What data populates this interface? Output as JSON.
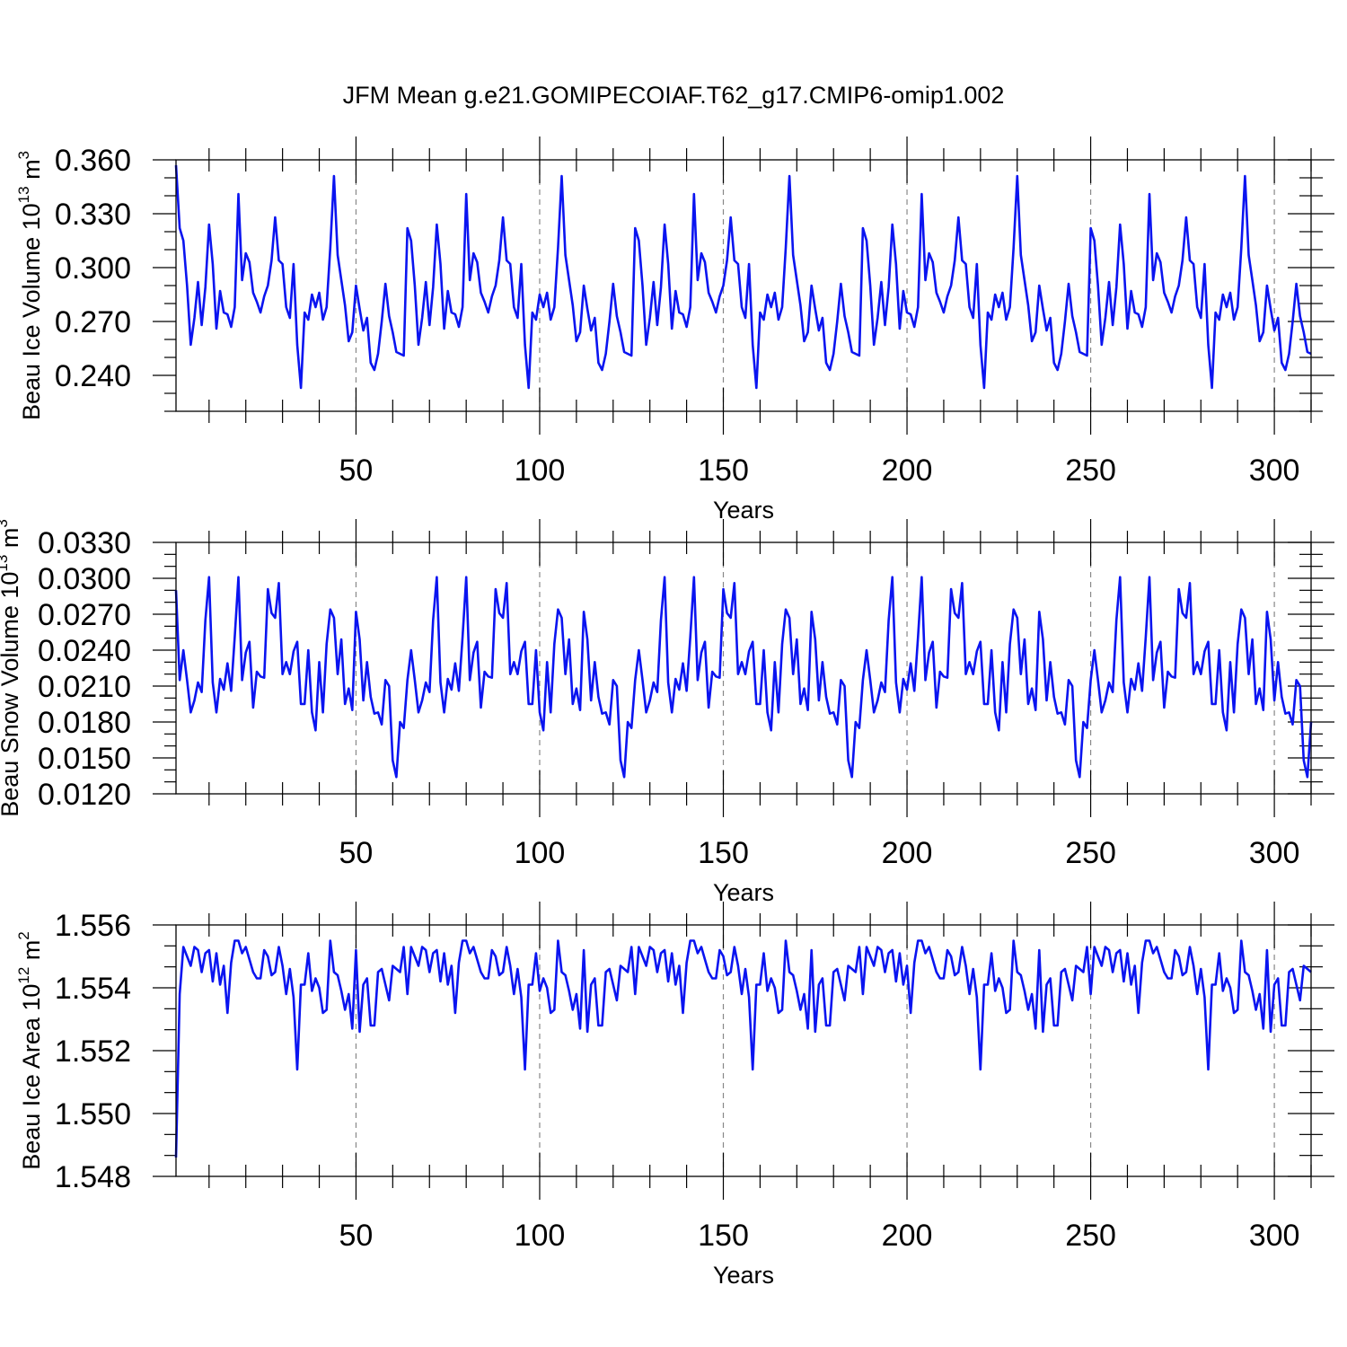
{
  "title": "JFM Mean g.e21.GOMIPECOIAF.T62_g17.CMIP6-omip1.002",
  "colors": {
    "series": "#0a14f0",
    "grid": "#888888",
    "axis": "#000000"
  },
  "chart_data": [
    {
      "type": "line",
      "name": "ice-volume",
      "ylabel": {
        "main": "Beau Ice Volume 10",
        "sup1": "13",
        "unit": " m",
        "sup2": "3"
      },
      "xlabel": "Years",
      "xlim": [
        1,
        310
      ],
      "ylim": [
        0.22,
        0.36
      ],
      "xticks": [
        "50",
        "100",
        "150",
        "200",
        "250",
        "300"
      ],
      "yticks": [
        "0.360",
        "0.330",
        "0.300",
        "0.270",
        "0.240"
      ],
      "grid": "vertical dashed at major x ticks",
      "period": 62,
      "values": [
        0.357,
        0.322,
        0.315,
        0.29,
        0.257,
        0.272,
        0.292,
        0.268,
        0.289,
        0.324,
        0.302,
        0.266,
        0.287,
        0.275,
        0.274,
        0.267,
        0.278,
        0.341,
        0.293,
        0.308,
        0.303,
        0.286,
        0.281,
        0.275,
        0.284,
        0.29,
        0.304,
        0.328,
        0.304,
        0.302,
        0.278,
        0.272,
        0.302,
        0.257,
        0.233,
        0.275,
        0.271,
        0.285,
        0.278,
        0.286,
        0.271,
        0.278,
        0.311,
        0.351,
        0.307,
        0.293,
        0.279,
        0.259,
        0.264,
        0.29,
        0.277,
        0.265,
        0.272,
        0.247,
        0.243,
        0.252,
        0.27,
        0.291,
        0.273,
        0.264,
        0.253,
        0.252,
        0.251
      ]
    },
    {
      "type": "line",
      "name": "snow-volume",
      "ylabel": {
        "main": "Beau Snow Volume 10",
        "sup1": "13",
        "unit": " m",
        "sup2": "3"
      },
      "xlabel": "Years",
      "xlim": [
        1,
        310
      ],
      "ylim": [
        0.012,
        0.033
      ],
      "xticks": [
        "50",
        "100",
        "150",
        "200",
        "250",
        "300"
      ],
      "yticks": [
        "0.0330",
        "0.0300",
        "0.0270",
        "0.0240",
        "0.0210",
        "0.0180",
        "0.0150",
        "0.0120"
      ],
      "grid": "vertical dashed at major x ticks",
      "period": 62,
      "values": [
        0.029,
        0.0215,
        0.024,
        0.0215,
        0.0188,
        0.0198,
        0.0213,
        0.0205,
        0.0265,
        0.0301,
        0.0213,
        0.0188,
        0.0216,
        0.0207,
        0.0229,
        0.0206,
        0.0251,
        0.0301,
        0.0215,
        0.0238,
        0.0247,
        0.0192,
        0.0222,
        0.0218,
        0.0217,
        0.0291,
        0.0271,
        0.0267,
        0.0296,
        0.022,
        0.023,
        0.022,
        0.0239,
        0.0247,
        0.0195,
        0.0195,
        0.024,
        0.0188,
        0.0173,
        0.023,
        0.0188,
        0.0245,
        0.0274,
        0.0267,
        0.022,
        0.0249,
        0.0195,
        0.0208,
        0.019,
        0.0272,
        0.0249,
        0.0198,
        0.023,
        0.0201,
        0.0187,
        0.0188,
        0.0178,
        0.0215,
        0.021,
        0.0148,
        0.0134,
        0.018,
        0.0175
      ]
    },
    {
      "type": "line",
      "name": "ice-area",
      "ylabel": {
        "main": "Beau Ice Area 10",
        "sup1": "12",
        "unit": " m",
        "sup2": "2"
      },
      "xlabel": "Years",
      "xlim": [
        1,
        310
      ],
      "ylim": [
        1.548,
        1.556
      ],
      "xticks": [
        "50",
        "100",
        "150",
        "200",
        "250",
        "300"
      ],
      "yticks": [
        "1.556",
        "1.554",
        "1.552",
        "1.550",
        "1.548"
      ],
      "grid": "vertical dashed at major x ticks",
      "period": 62,
      "values": [
        1.5486,
        1.5538,
        1.5553,
        1.555,
        1.5547,
        1.5553,
        1.5552,
        1.5545,
        1.5551,
        1.5552,
        1.5542,
        1.5551,
        1.5541,
        1.5547,
        1.5532,
        1.5548,
        1.5555,
        1.5555,
        1.5551,
        1.5553,
        1.5549,
        1.5545,
        1.5543,
        1.5543,
        1.5552,
        1.555,
        1.5544,
        1.5545,
        1.5553,
        1.5547,
        1.5538,
        1.5546,
        1.5537,
        1.5514,
        1.5541,
        1.5541,
        1.5551,
        1.5539,
        1.5543,
        1.554,
        1.5532,
        1.5533,
        1.5555,
        1.5545,
        1.5544,
        1.5539,
        1.5533,
        1.5538,
        1.5527,
        1.5552,
        1.5526,
        1.5541,
        1.5543,
        1.5528,
        1.5528,
        1.5545,
        1.5546,
        1.5541,
        1.5536,
        1.5547,
        1.5546,
        1.5545,
        1.5553
      ]
    }
  ]
}
